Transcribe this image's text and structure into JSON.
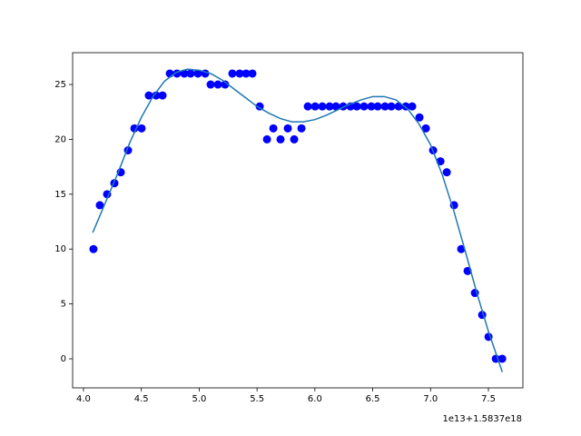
{
  "chart_data": {
    "type": "scatter",
    "offset_label": "1e13+1.5837e18",
    "xlim": [
      3.906,
      7.798
    ],
    "ylim": [
      -2.65,
      27.9
    ],
    "xticks": [
      {
        "value": 4.0,
        "label": "4.0"
      },
      {
        "value": 4.5,
        "label": "4.5"
      },
      {
        "value": 5.0,
        "label": "5.0"
      },
      {
        "value": 5.5,
        "label": "5.5"
      },
      {
        "value": 6.0,
        "label": "6.0"
      },
      {
        "value": 6.5,
        "label": "6.5"
      },
      {
        "value": 7.0,
        "label": "7.0"
      },
      {
        "value": 7.5,
        "label": "7.5"
      }
    ],
    "yticks": [
      0,
      5,
      10,
      15,
      20,
      25
    ],
    "grid": false,
    "series": [
      {
        "style": "points",
        "color": "#0000ff",
        "x": [
          4.086,
          4.141,
          4.204,
          4.267,
          4.322,
          4.385,
          4.44,
          4.502,
          4.565,
          4.628,
          4.683,
          4.746,
          4.808,
          4.871,
          4.926,
          4.989,
          5.052,
          5.099,
          5.162,
          5.224,
          5.287,
          5.35,
          5.405,
          5.46,
          5.523,
          5.586,
          5.641,
          5.703,
          5.766,
          5.821,
          5.884,
          5.939,
          6.002,
          6.064,
          6.127,
          6.182,
          6.245,
          6.308,
          6.363,
          6.425,
          6.488,
          6.543,
          6.606,
          6.661,
          6.724,
          6.786,
          6.841,
          6.904,
          6.959,
          7.022,
          7.085,
          7.14,
          7.203,
          7.265,
          7.32,
          7.383,
          7.446,
          7.501,
          7.564,
          7.619
        ],
        "values": [
          10,
          14,
          15,
          16,
          17,
          19,
          21,
          21,
          24,
          24,
          24,
          26,
          26,
          26,
          26,
          26,
          26,
          25,
          25,
          25,
          26,
          26,
          26,
          26,
          23,
          20,
          21,
          20,
          21,
          20,
          21,
          23,
          23,
          23,
          23,
          23,
          23,
          23,
          23,
          23,
          23,
          23,
          23,
          23,
          23,
          23,
          23,
          22,
          21,
          19,
          18,
          17,
          14,
          10,
          8,
          6,
          4,
          2,
          0,
          0
        ]
      },
      {
        "style": "line",
        "color": "#1f77b4",
        "x": [
          4.08,
          4.2,
          4.3,
          4.4,
          4.5,
          4.6,
          4.7,
          4.8,
          4.9,
          5.0,
          5.1,
          5.2,
          5.3,
          5.4,
          5.5,
          5.6,
          5.7,
          5.8,
          5.9,
          6.0,
          6.1,
          6.2,
          6.3,
          6.4,
          6.5,
          6.6,
          6.7,
          6.8,
          6.9,
          7.0,
          7.1,
          7.2,
          7.3,
          7.4,
          7.5,
          7.62
        ],
        "values": [
          11.5,
          14.5,
          17,
          19.7,
          22,
          23.9,
          25.3,
          26.1,
          26.4,
          26.3,
          26,
          25.4,
          24.6,
          23.8,
          23,
          22.4,
          21.9,
          21.6,
          21.6,
          21.8,
          22.2,
          22.7,
          23.2,
          23.6,
          23.9,
          23.9,
          23.6,
          22.8,
          21.4,
          19.5,
          16.8,
          13.5,
          9.8,
          6,
          2.5,
          -1.2
        ]
      }
    ]
  }
}
